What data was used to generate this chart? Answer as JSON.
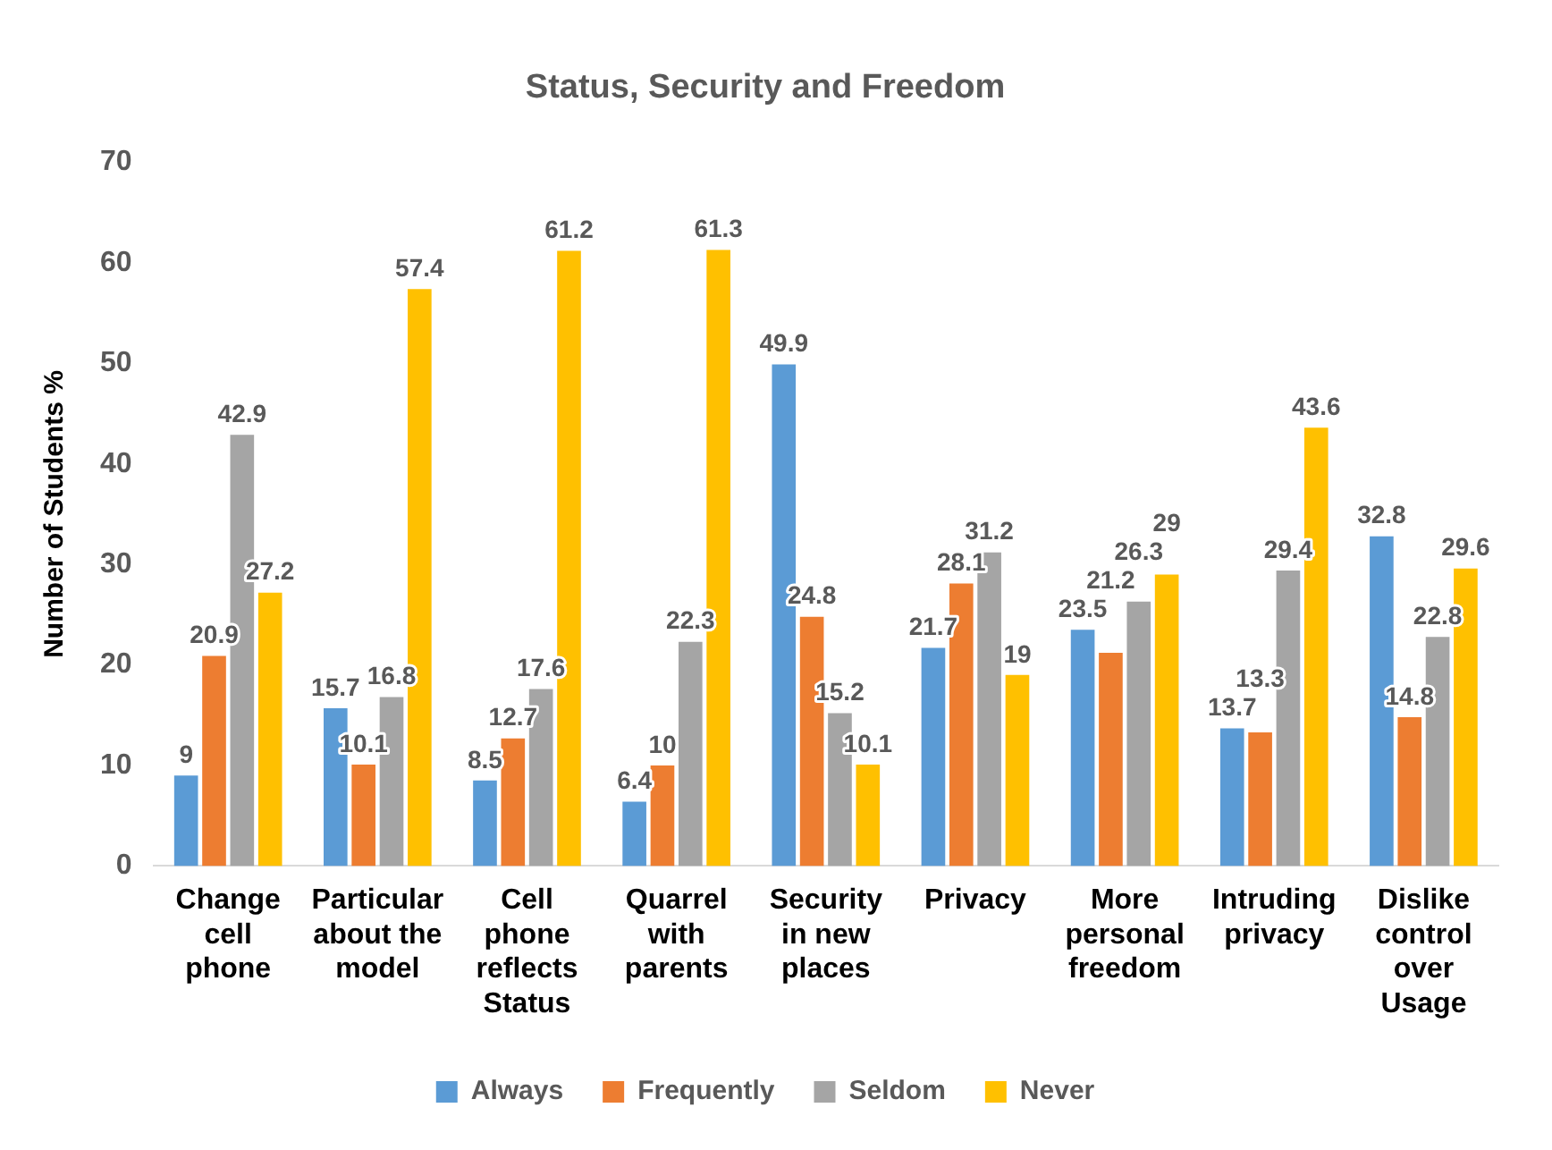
{
  "chart_data": {
    "type": "bar",
    "title": "Status, Security and Freedom",
    "ylabel": "Number of Students %",
    "categories": [
      "Change cell phone",
      "Particular about the model",
      "Cell phone reflects Status",
      "Quarrel with parents",
      "Security in new places",
      "Privacy",
      "More personal freedom",
      "Intruding privacy",
      "Dislike control over Usage"
    ],
    "series": [
      {
        "name": "Always",
        "color": "#5b9bd5",
        "values": [
          9,
          15.7,
          8.5,
          6.4,
          49.9,
          21.7,
          23.5,
          13.7,
          32.8
        ]
      },
      {
        "name": "Frequently",
        "color": "#ed7d31",
        "values": [
          20.9,
          10.1,
          12.7,
          10,
          24.8,
          28.1,
          21.2,
          13.3,
          14.8
        ]
      },
      {
        "name": "Seldom",
        "color": "#a5a5a5",
        "values": [
          42.9,
          16.8,
          17.6,
          22.3,
          15.2,
          31.2,
          26.3,
          29.4,
          22.8
        ]
      },
      {
        "name": "Never",
        "color": "#ffc000",
        "values": [
          27.2,
          57.4,
          61.2,
          61.3,
          10.1,
          19,
          29,
          43.6,
          29.6
        ]
      }
    ],
    "ylim": [
      0,
      70
    ],
    "yticks": [
      0,
      10,
      20,
      30,
      40,
      50,
      60,
      70
    ],
    "grid": false,
    "legend": "bottom",
    "data_labels": true
  }
}
